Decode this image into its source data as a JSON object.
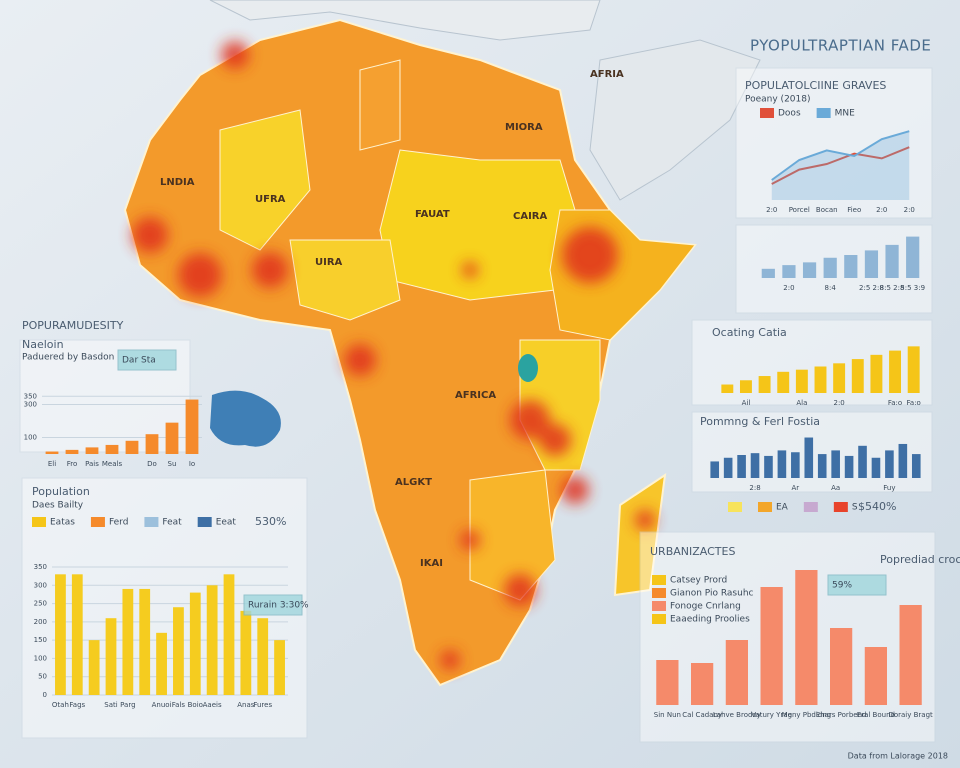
{
  "header": {
    "title": "PYOPULTRAPTIAN FADE",
    "left_title": "POPURAMUDESITY",
    "footer": "Data from Lalorage 2018"
  },
  "map": {
    "labels": [
      "AFRIA",
      "MIORA",
      "LNDIA",
      "UFRA",
      "FAUAT",
      "CAIRA",
      "UIRA",
      "AFRICA",
      "ALGKT",
      "IKAI"
    ]
  },
  "chart_data": [
    {
      "type": "line",
      "title": "POPULATOLCIINE GRAVES",
      "subtitle": "Poeany (2018)",
      "categories": [
        "2:0",
        "Porcel",
        "Bocan",
        "Fieo",
        "2:0",
        "2:0"
      ],
      "ylim": [
        0,
        100
      ],
      "series": [
        {
          "name": "Doos",
          "color": "#e0503a",
          "values": [
            20,
            38,
            45,
            58,
            52,
            66
          ]
        },
        {
          "name": "MNE",
          "color": "#6aaad8",
          "values": [
            25,
            50,
            62,
            55,
            76,
            86
          ]
        }
      ]
    },
    {
      "type": "bar",
      "categories": [
        null,
        "2:0",
        null,
        "8:4",
        null,
        "2:5 2:8",
        "8:5 2:8",
        "5:5 3:9"
      ],
      "values": [
        10,
        14,
        17,
        22,
        25,
        30,
        36,
        45
      ],
      "ylim": [
        0,
        50
      ],
      "color": "#8fb5d6"
    },
    {
      "type": "bar",
      "title": "Ocating Catia",
      "categories": [
        null,
        "Ail",
        null,
        null,
        "Ala",
        null,
        "2:0",
        null,
        null,
        "Fa:o",
        "Fa:o"
      ],
      "values": [
        8,
        12,
        16,
        20,
        22,
        25,
        28,
        32,
        36,
        40,
        44
      ],
      "ylim": [
        0,
        50
      ],
      "color": "#f5c518"
    },
    {
      "type": "bar",
      "title": "Pommng & Ferl Fostia",
      "categories": [
        null,
        null,
        null,
        "2:8",
        null,
        null,
        "Ar",
        null,
        null,
        "Aa",
        null,
        null,
        null,
        "Fuy",
        null,
        null
      ],
      "values": [
        18,
        22,
        25,
        27,
        24,
        30,
        28,
        44,
        26,
        30,
        24,
        35,
        22,
        30,
        37,
        26
      ],
      "ylim": [
        0,
        50
      ],
      "color": "#3e6fa5",
      "legend": [
        {
          "color": "#f7e35c"
        },
        {
          "name": "EA",
          "color": "#f3a62a"
        },
        {
          "color": "#c7a9d0"
        },
        {
          "name": "S",
          "color": "#e8432b"
        }
      ],
      "note": "$540%"
    },
    {
      "type": "bar",
      "title": "Naeloin",
      "subtitle": "Paduered by Basdon",
      "annotation": "Dar Sta",
      "categories": [
        "Eli",
        "Fro",
        "Pais",
        "Meals",
        null,
        "Do",
        "Su",
        "Io"
      ],
      "values": [
        15,
        25,
        40,
        55,
        80,
        120,
        190,
        330
      ],
      "ylim": [
        0,
        400
      ],
      "yticks": [
        100,
        300,
        350
      ],
      "color": "#f58a2b"
    },
    {
      "type": "bar",
      "title": "Population",
      "subtitle": "Daes Bailty",
      "annotation": "Rurain 3:30%",
      "note": "530%",
      "legend": [
        {
          "name": "Eatas",
          "color": "#f5c518"
        },
        {
          "name": "Ferd",
          "color": "#f58a2b"
        },
        {
          "name": "Feat",
          "color": "#9cc0dc"
        },
        {
          "name": "Eeat",
          "color": "#3e6fa5"
        }
      ],
      "categories": [
        "Otah",
        "Fags",
        null,
        "Sati",
        "Parg",
        null,
        "Anuoi",
        "Fals",
        "Boio",
        "Aaeis",
        null,
        "Anas",
        "Fures",
        null
      ],
      "values": [
        330,
        330,
        150,
        210,
        290,
        290,
        170,
        240,
        280,
        300,
        330,
        230,
        210,
        150
      ],
      "ylim": [
        0,
        350
      ],
      "yticks": [
        0,
        50,
        100,
        150,
        200,
        250,
        300,
        350
      ],
      "color": "#f5cc1f"
    },
    {
      "type": "bar",
      "title": "URBANIZACTES",
      "annotation": "59%",
      "note": "Poprediad croculsts aed",
      "legend": [
        {
          "name": "Catsey Prord",
          "color": "#f5c518"
        },
        {
          "name": "Gianon Pio Rasuhc",
          "color": "#f58a2b"
        },
        {
          "name": "Fonoge Cnrlang",
          "color": "#f58a6a"
        },
        {
          "name": "Eaaeding Proolies",
          "color": "#f5c518"
        }
      ],
      "categories": [
        "Sin Nun",
        "Cal Cadany",
        "Lahve Brodoy",
        "Vatury Yrag",
        "Meny Pbdidng",
        "Ehars Porbend",
        "Eral Bound",
        "Doraiy Bragt"
      ],
      "values": [
        45,
        42,
        65,
        118,
        135,
        77,
        58,
        100
      ],
      "ylim": [
        0,
        140
      ],
      "color": "#f58a6a"
    }
  ]
}
